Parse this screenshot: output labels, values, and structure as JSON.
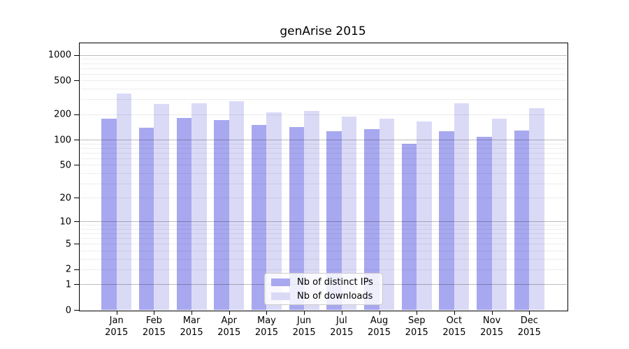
{
  "chart_data": {
    "type": "bar",
    "title": "genArise 2015",
    "categories": [
      "Jan",
      "Feb",
      "Mar",
      "Apr",
      "May",
      "Jun",
      "Jul",
      "Aug",
      "Sep",
      "Oct",
      "Nov",
      "Dec"
    ],
    "year": "2015",
    "series": [
      {
        "name": "Nb of distinct IPs",
        "color": "#a8a8f0",
        "values": [
          177,
          138,
          180,
          170,
          150,
          142,
          127,
          134,
          89,
          127,
          108,
          128
        ]
      },
      {
        "name": "Nb of downloads",
        "color": "#dadaf7",
        "values": [
          350,
          263,
          268,
          285,
          212,
          219,
          187,
          177,
          164,
          268,
          177,
          236
        ]
      }
    ],
    "xlabel": "",
    "ylabel": "",
    "yscale": "log1p",
    "yticks": [
      0,
      1,
      2,
      5,
      10,
      20,
      50,
      100,
      200,
      500,
      1000
    ],
    "major_grid_values": [
      1,
      10,
      100,
      1000
    ],
    "minor_grid_decades": [
      1,
      10,
      100
    ],
    "ylim": [
      0,
      1400
    ],
    "grid": "on",
    "legend_position": "lower center",
    "frame_color": "#000000",
    "background_color": "#ffffff"
  }
}
